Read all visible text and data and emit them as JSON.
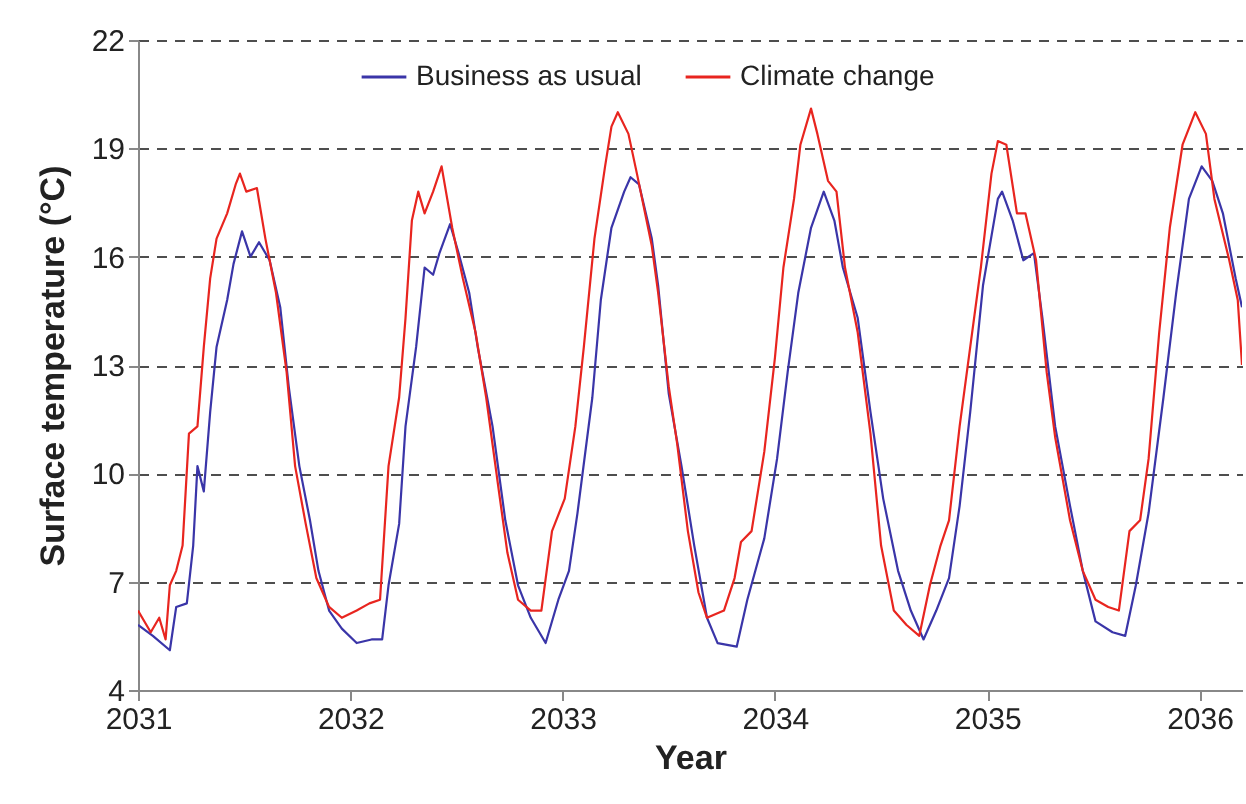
{
  "chart_data": {
    "type": "line",
    "xlabel": "Year",
    "ylabel": "Surface temperature (°C)",
    "xlim": [
      2031,
      2036.2
    ],
    "xticks": [
      2031,
      2032,
      2033,
      2034,
      2035,
      2036
    ],
    "ylim": [
      4,
      22
    ],
    "yticks": [
      4,
      7,
      10,
      13,
      16,
      19,
      22
    ],
    "grid": "y",
    "legend": "top",
    "line_style": "solid",
    "marker": "none",
    "series": [
      {
        "name": "Business as usual",
        "color": "#3a35a8",
        "x": [
          2031.0,
          2031.07,
          2031.15,
          2031.18,
          2031.23,
          2031.26,
          2031.28,
          2031.31,
          2031.34,
          2031.37,
          2031.42,
          2031.45,
          2031.49,
          2031.53,
          2031.57,
          2031.62,
          2031.67,
          2031.71,
          2031.76,
          2031.81,
          2031.85,
          2031.9,
          2031.96,
          2032.03,
          2032.1,
          2032.15,
          2032.18,
          2032.23,
          2032.26,
          2032.31,
          2032.35,
          2032.39,
          2032.42,
          2032.47,
          2032.51,
          2032.56,
          2032.6,
          2032.67,
          2032.73,
          2032.79,
          2032.85,
          2032.92,
          2032.98,
          2033.03,
          2033.07,
          2033.14,
          2033.18,
          2033.23,
          2033.29,
          2033.32,
          2033.36,
          2033.42,
          2033.45,
          2033.5,
          2033.56,
          2033.62,
          2033.68,
          2033.73,
          2033.82,
          2033.87,
          2033.95,
          2034.01,
          2034.06,
          2034.11,
          2034.17,
          2034.23,
          2034.28,
          2034.32,
          2034.39,
          2034.45,
          2034.51,
          2034.58,
          2034.64,
          2034.7,
          2034.76,
          2034.82,
          2034.87,
          2034.92,
          2034.98,
          2035.05,
          2035.07,
          2035.12,
          2035.17,
          2035.22,
          2035.26,
          2035.32,
          2035.39,
          2035.45,
          2035.51,
          2035.59,
          2035.65,
          2035.7,
          2035.76,
          2035.83,
          2035.89,
          2035.95,
          2036.01,
          2036.06,
          2036.11,
          2036.17,
          2036.2
        ],
        "values": [
          5.8,
          5.5,
          5.1,
          6.3,
          6.4,
          8.0,
          10.2,
          9.5,
          11.7,
          13.5,
          14.8,
          15.8,
          16.7,
          16.0,
          16.4,
          15.9,
          14.6,
          12.4,
          10.2,
          8.7,
          7.3,
          6.2,
          5.7,
          5.3,
          5.4,
          5.4,
          6.9,
          8.6,
          11.3,
          13.5,
          15.7,
          15.5,
          16.1,
          16.9,
          16.1,
          15.0,
          13.5,
          11.3,
          8.7,
          6.9,
          6.0,
          5.3,
          6.5,
          7.3,
          8.9,
          12.1,
          14.8,
          16.8,
          17.8,
          18.2,
          18.0,
          16.5,
          15.2,
          12.2,
          10.2,
          8.0,
          6.0,
          5.3,
          5.2,
          6.5,
          8.2,
          10.4,
          12.8,
          15.0,
          16.8,
          17.8,
          17.0,
          15.7,
          14.3,
          11.7,
          9.3,
          7.3,
          6.2,
          5.4,
          6.2,
          7.1,
          9.1,
          11.7,
          15.2,
          17.6,
          17.8,
          17.0,
          15.9,
          16.1,
          14.3,
          11.3,
          9.1,
          7.3,
          5.9,
          5.6,
          5.5,
          6.9,
          8.9,
          12.1,
          15.0,
          17.6,
          18.5,
          18.1,
          17.2,
          15.4,
          14.6
        ]
      },
      {
        "name": "Climate change",
        "color": "#e8251f",
        "x": [
          2031.0,
          2031.06,
          2031.1,
          2031.13,
          2031.15,
          2031.18,
          2031.21,
          2031.24,
          2031.28,
          2031.31,
          2031.34,
          2031.37,
          2031.42,
          2031.46,
          2031.48,
          2031.51,
          2031.56,
          2031.6,
          2031.65,
          2031.7,
          2031.74,
          2031.79,
          2031.84,
          2031.9,
          2031.96,
          2032.03,
          2032.09,
          2032.14,
          2032.18,
          2032.23,
          2032.26,
          2032.29,
          2032.32,
          2032.35,
          2032.39,
          2032.43,
          2032.48,
          2032.53,
          2032.59,
          2032.64,
          2032.7,
          2032.74,
          2032.79,
          2032.85,
          2032.9,
          2032.95,
          2033.01,
          2033.06,
          2033.1,
          2033.15,
          2033.2,
          2033.23,
          2033.26,
          2033.31,
          2033.35,
          2033.42,
          2033.45,
          2033.5,
          2033.54,
          2033.59,
          2033.64,
          2033.68,
          2033.76,
          2033.81,
          2033.84,
          2033.89,
          2033.95,
          2034.0,
          2034.04,
          2034.09,
          2034.12,
          2034.17,
          2034.2,
          2034.25,
          2034.29,
          2034.33,
          2034.39,
          2034.45,
          2034.5,
          2034.56,
          2034.62,
          2034.68,
          2034.73,
          2034.78,
          2034.82,
          2034.87,
          2034.92,
          2034.97,
          2035.02,
          2035.05,
          2035.09,
          2035.14,
          2035.18,
          2035.23,
          2035.28,
          2035.32,
          2035.39,
          2035.45,
          2035.51,
          2035.57,
          2035.62,
          2035.67,
          2035.72,
          2035.76,
          2035.81,
          2035.86,
          2035.92,
          2035.98,
          2036.03,
          2036.07,
          2036.14,
          2036.18,
          2036.2
        ],
        "values": [
          6.2,
          5.6,
          6.0,
          5.4,
          6.9,
          7.3,
          8.0,
          11.1,
          11.3,
          13.5,
          15.4,
          16.5,
          17.2,
          18.0,
          18.3,
          17.8,
          17.9,
          16.5,
          15.0,
          12.8,
          10.2,
          8.6,
          7.1,
          6.3,
          6.0,
          6.2,
          6.4,
          6.5,
          10.2,
          12.1,
          14.3,
          17.0,
          17.8,
          17.2,
          17.8,
          18.5,
          16.8,
          15.4,
          13.9,
          12.1,
          9.5,
          7.8,
          6.5,
          6.2,
          6.2,
          8.4,
          9.3,
          11.3,
          13.5,
          16.5,
          18.5,
          19.6,
          20.0,
          19.4,
          18.3,
          16.3,
          15.0,
          12.4,
          10.8,
          8.4,
          6.7,
          6.0,
          6.2,
          7.1,
          8.1,
          8.4,
          10.6,
          13.2,
          15.7,
          17.6,
          19.1,
          20.1,
          19.4,
          18.1,
          17.8,
          15.7,
          13.9,
          11.1,
          8.0,
          6.2,
          5.8,
          5.5,
          6.9,
          8.0,
          8.7,
          11.3,
          13.5,
          15.7,
          18.3,
          19.2,
          19.1,
          17.2,
          17.2,
          15.9,
          12.8,
          11.0,
          8.7,
          7.3,
          6.5,
          6.3,
          6.2,
          8.4,
          8.7,
          10.4,
          13.9,
          16.8,
          19.1,
          20.0,
          19.4,
          17.6,
          15.9,
          14.8,
          13.0
        ]
      }
    ]
  }
}
